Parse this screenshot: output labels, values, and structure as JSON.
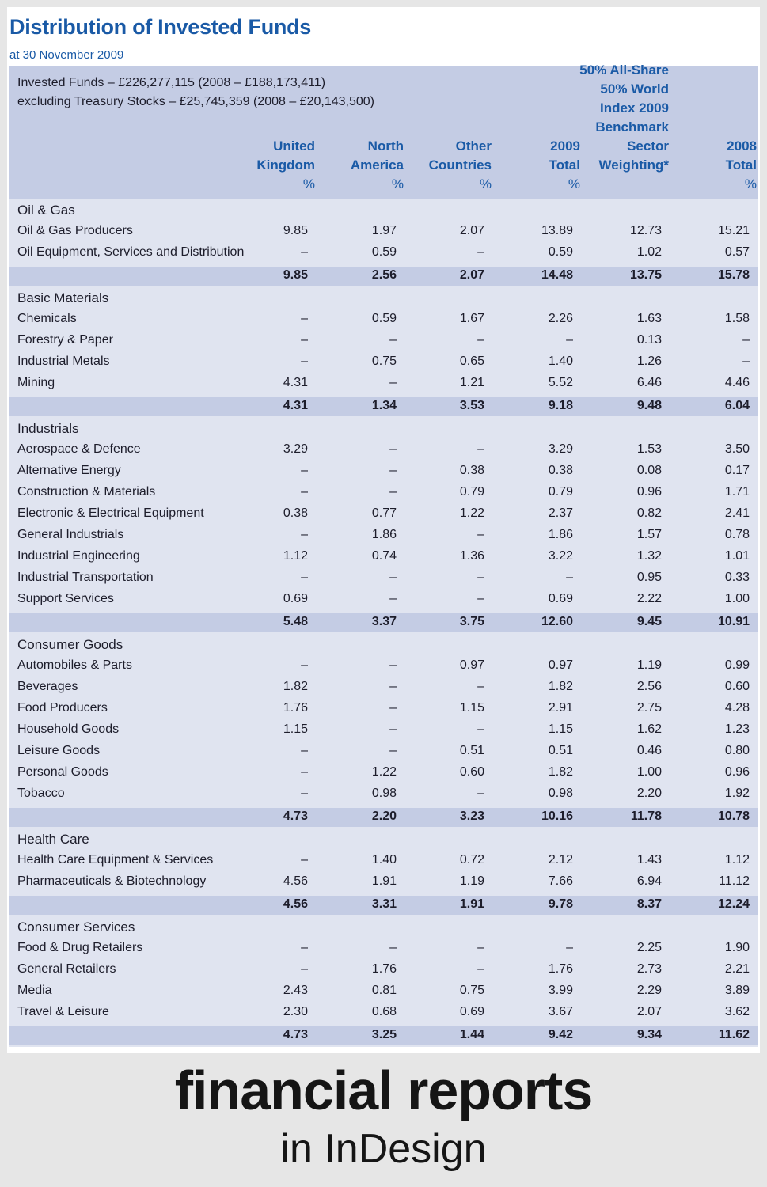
{
  "title": "Distribution of Invested Funds",
  "subtitle": "at 30 November 2009",
  "header": {
    "funds_line1": "Invested Funds – £226,277,115 (2008 – £188,173,411)",
    "funds_line2": "excluding Treasury Stocks – £25,745,359 (2008 – £20,143,500)",
    "columns": [
      {
        "lines": [
          "United",
          "Kingdom"
        ],
        "unit": "%"
      },
      {
        "lines": [
          "North",
          "America"
        ],
        "unit": "%"
      },
      {
        "lines": [
          "Other",
          "Countries"
        ],
        "unit": "%"
      },
      {
        "lines": [
          "2009",
          "Total"
        ],
        "unit": "%"
      },
      {
        "lines": [
          "50% All-Share",
          "50% World",
          "Index 2009",
          "Benchmark",
          "Sector",
          "Weighting*"
        ],
        "unit": ""
      },
      {
        "lines": [
          "2008",
          "Total"
        ],
        "unit": "%"
      }
    ]
  },
  "sections": [
    {
      "name": "Oil & Gas",
      "rows": [
        {
          "label": "Oil & Gas Producers",
          "values": [
            "9.85",
            "1.97",
            "2.07",
            "13.89",
            "12.73",
            "15.21"
          ]
        },
        {
          "label": "Oil Equipment, Services and Distribution",
          "values": [
            "–",
            "0.59",
            "–",
            "0.59",
            "1.02",
            "0.57"
          ]
        }
      ],
      "total": [
        "9.85",
        "2.56",
        "2.07",
        "14.48",
        "13.75",
        "15.78"
      ]
    },
    {
      "name": "Basic Materials",
      "rows": [
        {
          "label": "Chemicals",
          "values": [
            "–",
            "0.59",
            "1.67",
            "2.26",
            "1.63",
            "1.58"
          ]
        },
        {
          "label": "Forestry & Paper",
          "values": [
            "–",
            "–",
            "–",
            "–",
            "0.13",
            "–"
          ]
        },
        {
          "label": "Industrial Metals",
          "values": [
            "–",
            "0.75",
            "0.65",
            "1.40",
            "1.26",
            "–"
          ]
        },
        {
          "label": "Mining",
          "values": [
            "4.31",
            "–",
            "1.21",
            "5.52",
            "6.46",
            "4.46"
          ]
        }
      ],
      "total": [
        "4.31",
        "1.34",
        "3.53",
        "9.18",
        "9.48",
        "6.04"
      ]
    },
    {
      "name": "Industrials",
      "rows": [
        {
          "label": "Aerospace & Defence",
          "values": [
            "3.29",
            "–",
            "–",
            "3.29",
            "1.53",
            "3.50"
          ]
        },
        {
          "label": "Alternative Energy",
          "values": [
            "–",
            "–",
            "0.38",
            "0.38",
            "0.08",
            "0.17"
          ]
        },
        {
          "label": "Construction & Materials",
          "values": [
            "–",
            "–",
            "0.79",
            "0.79",
            "0.96",
            "1.71"
          ]
        },
        {
          "label": "Electronic & Electrical Equipment",
          "values": [
            "0.38",
            "0.77",
            "1.22",
            "2.37",
            "0.82",
            "2.41"
          ]
        },
        {
          "label": "General Industrials",
          "values": [
            "–",
            "1.86",
            "–",
            "1.86",
            "1.57",
            "0.78"
          ]
        },
        {
          "label": "Industrial Engineering",
          "values": [
            "1.12",
            "0.74",
            "1.36",
            "3.22",
            "1.32",
            "1.01"
          ]
        },
        {
          "label": "Industrial Transportation",
          "values": [
            "–",
            "–",
            "–",
            "–",
            "0.95",
            "0.33"
          ]
        },
        {
          "label": "Support Services",
          "values": [
            "0.69",
            "–",
            "–",
            "0.69",
            "2.22",
            "1.00"
          ]
        }
      ],
      "total": [
        "5.48",
        "3.37",
        "3.75",
        "12.60",
        "9.45",
        "10.91"
      ]
    },
    {
      "name": "Consumer Goods",
      "rows": [
        {
          "label": "Automobiles & Parts",
          "values": [
            "–",
            "–",
            "0.97",
            "0.97",
            "1.19",
            "0.99"
          ]
        },
        {
          "label": "Beverages",
          "values": [
            "1.82",
            "–",
            "–",
            "1.82",
            "2.56",
            "0.60"
          ]
        },
        {
          "label": "Food Producers",
          "values": [
            "1.76",
            "–",
            "1.15",
            "2.91",
            "2.75",
            "4.28"
          ]
        },
        {
          "label": "Household Goods",
          "values": [
            "1.15",
            "–",
            "–",
            "1.15",
            "1.62",
            "1.23"
          ]
        },
        {
          "label": "Leisure Goods",
          "values": [
            "–",
            "–",
            "0.51",
            "0.51",
            "0.46",
            "0.80"
          ]
        },
        {
          "label": "Personal Goods",
          "values": [
            "–",
            "1.22",
            "0.60",
            "1.82",
            "1.00",
            "0.96"
          ]
        },
        {
          "label": "Tobacco",
          "values": [
            "–",
            "0.98",
            "–",
            "0.98",
            "2.20",
            "1.92"
          ]
        }
      ],
      "total": [
        "4.73",
        "2.20",
        "3.23",
        "10.16",
        "11.78",
        "10.78"
      ]
    },
    {
      "name": "Health Care",
      "rows": [
        {
          "label": "Health Care Equipment & Services",
          "values": [
            "–",
            "1.40",
            "0.72",
            "2.12",
            "1.43",
            "1.12"
          ]
        },
        {
          "label": "Pharmaceuticals & Biotechnology",
          "values": [
            "4.56",
            "1.91",
            "1.19",
            "7.66",
            "6.94",
            "11.12"
          ]
        }
      ],
      "total": [
        "4.56",
        "3.31",
        "1.91",
        "9.78",
        "8.37",
        "12.24"
      ]
    },
    {
      "name": "Consumer Services",
      "rows": [
        {
          "label": "Food & Drug Retailers",
          "values": [
            "–",
            "–",
            "–",
            "–",
            "2.25",
            "1.90"
          ]
        },
        {
          "label": "General Retailers",
          "values": [
            "–",
            "1.76",
            "–",
            "1.76",
            "2.73",
            "2.21"
          ]
        },
        {
          "label": "Media",
          "values": [
            "2.43",
            "0.81",
            "0.75",
            "3.99",
            "2.29",
            "3.89"
          ]
        },
        {
          "label": "Travel & Leisure",
          "values": [
            "2.30",
            "0.68",
            "0.69",
            "3.67",
            "2.07",
            "3.62"
          ]
        }
      ],
      "total": [
        "4.73",
        "3.25",
        "1.44",
        "9.42",
        "9.34",
        "11.62"
      ]
    }
  ],
  "footer": {
    "line1": "financial reports",
    "line2": "in InDesign"
  },
  "colors": {
    "title_blue": "#1a5aa6",
    "header_band": "#c4cce4",
    "body_band": "#e0e4f0"
  }
}
